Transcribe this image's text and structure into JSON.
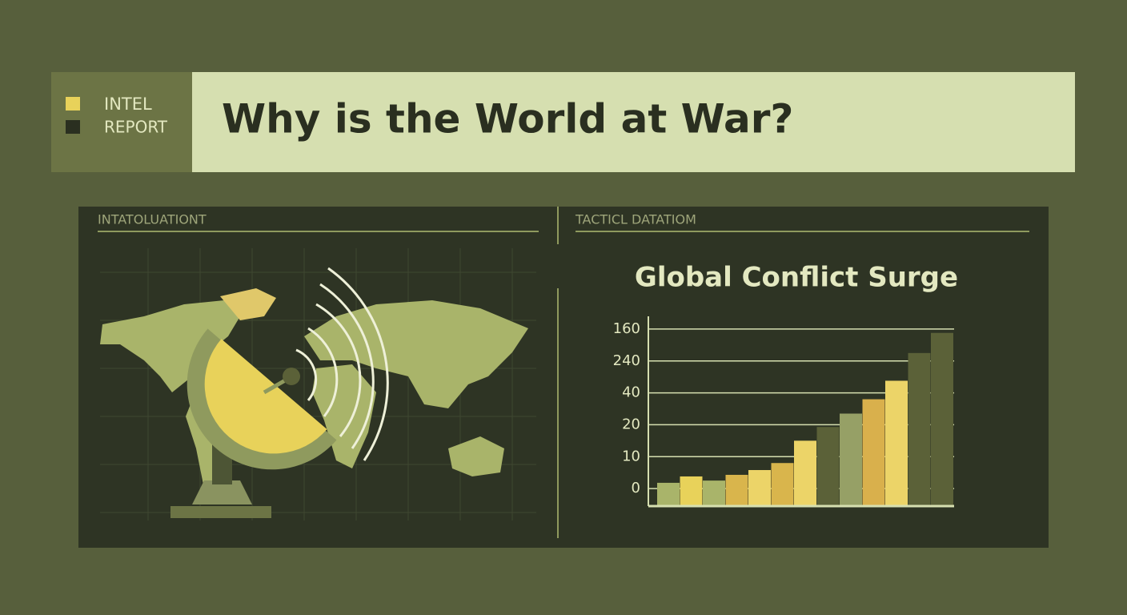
{
  "header": {
    "legend": [
      "INTEL",
      "REPORT"
    ],
    "title": "Why is the World at War?"
  },
  "map_panel": {
    "label": "INTATOLUATIONT"
  },
  "chart_panel": {
    "label": "TACTICL DATATIOM"
  },
  "chart_data": {
    "type": "bar",
    "title": "Global Conflict Surge",
    "values": [
      0.18,
      0.38,
      0.25,
      0.43,
      0.58,
      0.8,
      1.5,
      1.93,
      2.35,
      2.8,
      3.38,
      4.25,
      4.88
    ],
    "colors": [
      "#a9b46a",
      "#e8d25a",
      "#a9b46a",
      "#d9b54c",
      "#ecd468",
      "#d9b54c",
      "#ecd468",
      "#5b6138",
      "#96a066",
      "#d9b04c",
      "#ecd468",
      "#5b6138",
      "#5b6138"
    ],
    "ylim": [
      -0.55,
      5.4
    ],
    "yticks": [
      {
        "value": 0,
        "label": "0"
      },
      {
        "value": 1,
        "label": "10"
      },
      {
        "value": 2,
        "label": "20"
      },
      {
        "value": 3,
        "label": "40"
      },
      {
        "value": 4,
        "label": "240"
      },
      {
        "value": 5,
        "label": "160"
      }
    ],
    "grid": true
  }
}
